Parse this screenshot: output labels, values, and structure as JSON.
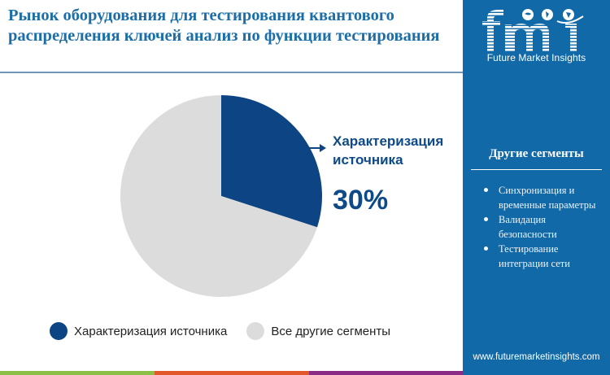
{
  "header": {
    "title": "Рынок оборудования для тестирования квантового распределения ключей анализ по функции тестирования"
  },
  "callout": {
    "label": "Характеризация источника",
    "value": "30%"
  },
  "legend": {
    "items": [
      {
        "label": "Характеризация источника",
        "color": "#0d4483"
      },
      {
        "label": "Все другие сегменты",
        "color": "#dcdcdc"
      }
    ]
  },
  "sidebar": {
    "brand": "Future Market Insights",
    "heading": "Другие сегменты",
    "items": [
      "Синхронизация и временные параметры",
      "Валидация безопасности",
      "Тестирование интеграции сети"
    ],
    "url": "www.futuremarketinsights.com"
  },
  "colors": {
    "primary": "#0d4483",
    "other": "#dcdcdc",
    "panel": "#1169a8",
    "title": "#1b6ea8",
    "stripe_green": "#8cbf45",
    "stripe_orange": "#e2582a",
    "stripe_purple": "#8a2c86"
  },
  "chart_data": {
    "type": "pie",
    "title": "Рынок оборудования для тестирования квантового распределения ключей анализ по функции тестирования",
    "categories": [
      "Характеризация источника",
      "Все другие сегменты"
    ],
    "values": [
      30,
      70
    ],
    "unit": "%",
    "start_angle": "12 o'clock, clockwise",
    "highlighted": "Характеризация источника",
    "annotation": "Характеризация источника 30%",
    "legend_position": "bottom"
  }
}
